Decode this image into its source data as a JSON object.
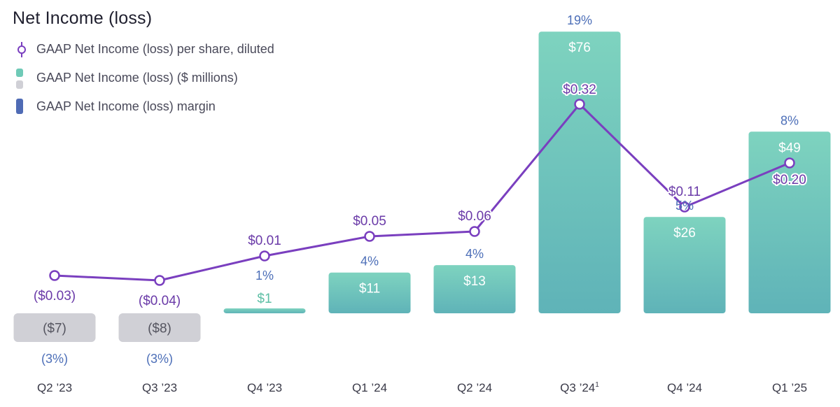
{
  "title": "Net Income (loss)",
  "legend": [
    {
      "label": "GAAP Net Income (loss) per share, diluted",
      "icon": "line-marker-icon",
      "color": "#7a3fbf"
    },
    {
      "label": "GAAP Net Income (loss) ($ millions)",
      "icon": "bar-swatch-icon",
      "colors": [
        "#6fcab7",
        "#d0d0d6"
      ]
    },
    {
      "label": "GAAP Net Income (loss) margin",
      "icon": "margin-swatch-icon",
      "color": "#4f6bb5"
    }
  ],
  "chart_data": {
    "type": "bar",
    "categories": [
      "Q2 ’23",
      "Q3 ’23",
      "Q4 ’23",
      "Q1 ’24",
      "Q2 ’24",
      "Q3 ’24",
      "Q4 ’24",
      "Q1 ’25"
    ],
    "category_footnotes": [
      "",
      "",
      "",
      "",
      "",
      "1",
      "",
      ""
    ],
    "series": [
      {
        "name": "GAAP Net Income (loss) ($ millions)",
        "values": [
          -7,
          -8,
          1,
          11,
          13,
          76,
          26,
          49
        ],
        "labels": [
          "($7)",
          "($8)",
          "$1",
          "$11",
          "$13",
          "$76",
          "$26",
          "$49"
        ]
      },
      {
        "name": "GAAP Net Income (loss) margin",
        "values": [
          -3,
          -3,
          1,
          4,
          4,
          19,
          5,
          8
        ],
        "labels": [
          "(3%)",
          "(3%)",
          "1%",
          "4%",
          "4%",
          "19%",
          "5%",
          "8%"
        ]
      },
      {
        "name": "GAAP Net Income (loss) per share, diluted",
        "values": [
          -0.03,
          -0.04,
          0.01,
          0.05,
          0.06,
          0.32,
          0.11,
          0.2
        ],
        "labels": [
          "($0.03)",
          "($0.04)",
          "$0.01",
          "$0.05",
          "$0.06",
          "$0.32",
          "$0.11",
          "$0.20"
        ]
      }
    ],
    "colors": {
      "positive_bar_top": "#7ed3bf",
      "positive_bar_bottom": "#5fb3b8",
      "negative_bar": "#d0d0d6",
      "line": "#7a3fbf",
      "margin_text": "#4d6fb8",
      "positive_value_text": "#ffffff",
      "negative_value_text": "#555560",
      "small_value_text": "#5dbfa5"
    }
  }
}
